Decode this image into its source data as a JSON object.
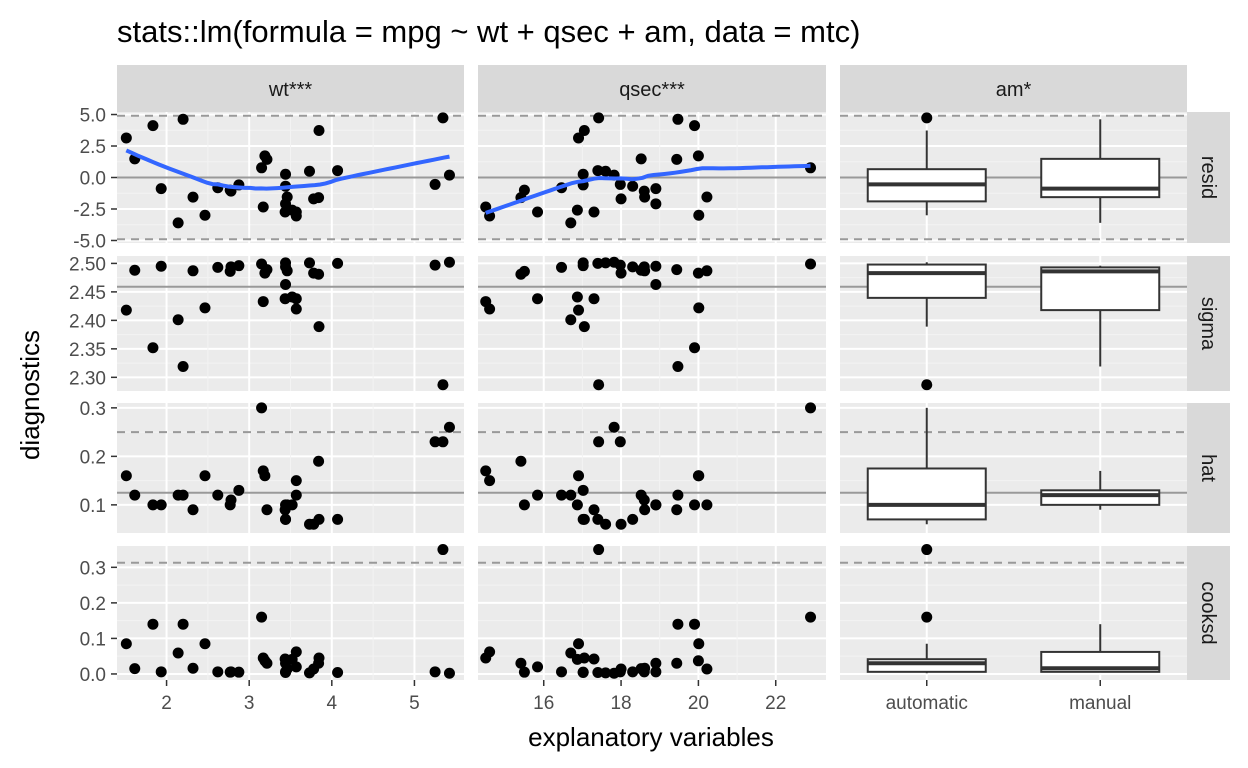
{
  "chart_data": {
    "type": "scatter",
    "title": "stats::lm(formula = mpg ~ wt + qsec + am, data = mtc)",
    "xlabel": "explanatory variables",
    "ylabel": "diagnostics",
    "columns": [
      {
        "label": "wt***",
        "kind": "numeric",
        "xlim": [
          1.4,
          5.6
        ],
        "ticks": [
          2,
          3,
          4,
          5
        ],
        "tick_labels": [
          "2",
          "3",
          "4",
          "5"
        ]
      },
      {
        "label": "qsec***",
        "kind": "numeric",
        "xlim": [
          14.3,
          23.3
        ],
        "ticks": [
          16,
          18,
          20,
          22
        ],
        "tick_labels": [
          "16",
          "18",
          "20",
          "22"
        ]
      },
      {
        "label": "am*",
        "kind": "categorical",
        "categories": [
          "automatic",
          "manual"
        ]
      }
    ],
    "rows": [
      {
        "label": "resid",
        "ylim": [
          -5.2,
          5.2
        ],
        "ticks": [
          -5,
          -2.5,
          0,
          2.5,
          5
        ],
        "tick_labels": [
          "-5.0",
          "-2.5",
          "0.0",
          "2.5",
          "5.0"
        ],
        "solid_ref": [
          0
        ],
        "dashed_ref": [
          -4.9,
          4.9
        ],
        "smooth": true
      },
      {
        "label": "sigma",
        "ylim": [
          2.276,
          2.513
        ],
        "ticks": [
          2.3,
          2.35,
          2.4,
          2.45,
          2.5
        ],
        "tick_labels": [
          "2.30",
          "2.35",
          "2.40",
          "2.45",
          "2.50"
        ],
        "solid_ref": [
          2.459
        ],
        "dashed_ref": [],
        "smooth": false
      },
      {
        "label": "hat",
        "ylim": [
          0.042,
          0.31
        ],
        "ticks": [
          0.1,
          0.2,
          0.3
        ],
        "tick_labels": [
          "0.1",
          "0.2",
          "0.3"
        ],
        "solid_ref": [
          0.125
        ],
        "dashed_ref": [
          0.25
        ],
        "smooth": false
      },
      {
        "label": "cooksd",
        "ylim": [
          -0.017,
          0.36
        ],
        "ticks": [
          0,
          0.1,
          0.2,
          0.3
        ],
        "tick_labels": [
          "0.0",
          "0.1",
          "0.2",
          "0.3"
        ],
        "solid_ref": [],
        "dashed_ref": [
          0.313
        ],
        "smooth": false
      }
    ],
    "data": {
      "wt": [
        2.62,
        2.875,
        2.32,
        3.215,
        3.44,
        3.46,
        3.57,
        3.19,
        3.15,
        3.44,
        3.44,
        4.07,
        3.73,
        3.78,
        5.25,
        5.424,
        5.345,
        2.2,
        1.615,
        1.835,
        2.465,
        3.52,
        3.435,
        3.84,
        3.845,
        1.935,
        2.14,
        1.513,
        3.17,
        2.77,
        3.57,
        2.78
      ],
      "qsec": [
        16.46,
        17.02,
        18.61,
        19.44,
        17.02,
        20.22,
        15.84,
        20.0,
        22.9,
        18.3,
        18.9,
        17.4,
        17.6,
        18.0,
        17.98,
        17.82,
        17.42,
        19.47,
        18.52,
        19.9,
        20.01,
        16.87,
        17.3,
        15.41,
        17.05,
        18.9,
        16.7,
        16.9,
        14.5,
        15.5,
        14.6,
        18.6
      ],
      "am": [
        "manual",
        "manual",
        "manual",
        "automatic",
        "automatic",
        "automatic",
        "automatic",
        "automatic",
        "automatic",
        "automatic",
        "automatic",
        "automatic",
        "automatic",
        "automatic",
        "automatic",
        "automatic",
        "automatic",
        "manual",
        "manual",
        "manual",
        "automatic",
        "automatic",
        "automatic",
        "automatic",
        "automatic",
        "manual",
        "manual",
        "manual",
        "manual",
        "manual",
        "manual",
        "manual"
      ],
      "resid": [
        -0.81,
        -0.59,
        -1.56,
        1.44,
        0.26,
        -1.55,
        -2.74,
        1.72,
        0.77,
        -0.69,
        -2.09,
        0.55,
        0.5,
        -1.7,
        -0.55,
        0.19,
        4.73,
        4.62,
        1.48,
        4.12,
        -3.0,
        -2.59,
        -2.74,
        -1.6,
        3.73,
        -0.88,
        -3.6,
        3.14,
        -2.34,
        -1.0,
        -3.06,
        -1.08
      ],
      "sigma": [
        2.493,
        2.496,
        2.487,
        2.489,
        2.501,
        2.487,
        2.438,
        2.483,
        2.499,
        2.494,
        2.463,
        2.5,
        2.501,
        2.483,
        2.497,
        2.502,
        2.287,
        2.319,
        2.488,
        2.352,
        2.422,
        2.441,
        2.438,
        2.481,
        2.389,
        2.495,
        2.401,
        2.418,
        2.433,
        2.486,
        2.42,
        2.494
      ],
      "hat": [
        0.12,
        0.13,
        0.09,
        0.09,
        0.07,
        0.1,
        0.12,
        0.16,
        0.3,
        0.07,
        0.1,
        0.07,
        0.06,
        0.06,
        0.23,
        0.26,
        0.23,
        0.12,
        0.12,
        0.1,
        0.16,
        0.1,
        0.09,
        0.19,
        0.07,
        0.1,
        0.12,
        0.16,
        0.17,
        0.1,
        0.15,
        0.11
      ],
      "cooksd": [
        0.006,
        0.005,
        0.016,
        0.03,
        0.004,
        0.014,
        0.02,
        0.037,
        0.16,
        0.006,
        0.03,
        0.004,
        0.003,
        0.014,
        0.006,
        0.002,
        0.35,
        0.14,
        0.015,
        0.14,
        0.085,
        0.041,
        0.042,
        0.03,
        0.045,
        0.006,
        0.059,
        0.085,
        0.045,
        0.005,
        0.062,
        0.006
      ]
    }
  },
  "colors": {
    "panel_bg": "#ebebeb",
    "grid_major": "#ffffff",
    "grid_minor": "#f3f3f3",
    "strip_bg": "#d9d9d9",
    "point": "#000000",
    "smooth_line": "#3366ff",
    "ref_line": "#999999",
    "box_line": "#333333"
  }
}
